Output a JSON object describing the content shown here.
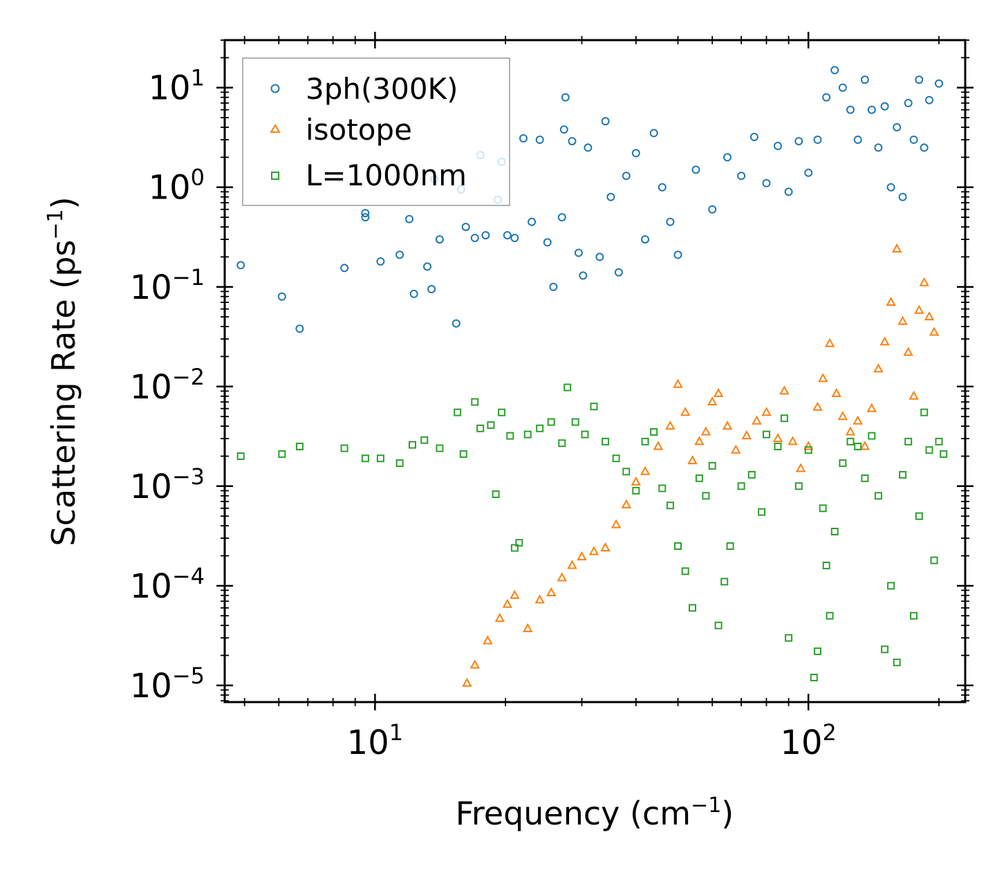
{
  "chart_data": {
    "type": "scatter",
    "xscale": "log",
    "yscale": "log",
    "xlim": [
      4.5,
      230
    ],
    "ylim": [
      6.8e-06,
      30
    ],
    "xlabel": "Frequency (cm",
    "xlabel_sup": "−1",
    "xlabel_end": ")",
    "ylabel": "Scattering Rate (ps",
    "ylabel_sup": "−1",
    "ylabel_end": ")",
    "x_ticks": [
      {
        "value": 10,
        "base": "10",
        "exp": "1"
      },
      {
        "value": 100,
        "base": "10",
        "exp": "2"
      }
    ],
    "y_ticks": [
      {
        "value": 10,
        "base": "10",
        "exp": "1"
      },
      {
        "value": 1,
        "base": "10",
        "exp": "0"
      },
      {
        "value": 0.1,
        "base": "10",
        "exp": "−1"
      },
      {
        "value": 0.01,
        "base": "10",
        "exp": "−2"
      },
      {
        "value": 0.001,
        "base": "10",
        "exp": "−3"
      },
      {
        "value": 0.0001,
        "base": "10",
        "exp": "−4"
      },
      {
        "value": 1e-05,
        "base": "10",
        "exp": "−5"
      }
    ],
    "legend_position": "top-left",
    "series": [
      {
        "name": "3ph(300K)",
        "marker": "circle",
        "color": "#1f77b4",
        "points": [
          [
            4.9,
            0.165
          ],
          [
            6.1,
            0.08
          ],
          [
            6.7,
            0.038
          ],
          [
            8.5,
            0.155
          ],
          [
            9.5,
            0.55
          ],
          [
            9.5,
            0.5
          ],
          [
            10.3,
            0.18
          ],
          [
            11.4,
            0.21
          ],
          [
            12.0,
            0.48
          ],
          [
            12.3,
            0.085
          ],
          [
            13.2,
            0.16
          ],
          [
            13.5,
            0.095
          ],
          [
            13.7,
            1.2
          ],
          [
            14.1,
            0.3
          ],
          [
            15.4,
            0.043
          ],
          [
            15.8,
            0.95
          ],
          [
            16.2,
            0.4
          ],
          [
            17.0,
            0.31
          ],
          [
            17.5,
            2.1
          ],
          [
            18.0,
            0.33
          ],
          [
            19.2,
            0.75
          ],
          [
            19.6,
            1.8
          ],
          [
            20.2,
            0.33
          ],
          [
            21.0,
            0.31
          ],
          [
            22.0,
            3.1
          ],
          [
            23.0,
            0.45
          ],
          [
            24.0,
            3.0
          ],
          [
            25.0,
            0.28
          ],
          [
            25.8,
            0.1
          ],
          [
            27.0,
            0.5
          ],
          [
            27.5,
            8.0
          ],
          [
            27.3,
            3.8
          ],
          [
            28.5,
            2.9
          ],
          [
            29.5,
            0.22
          ],
          [
            30.2,
            0.13
          ],
          [
            31.0,
            2.5
          ],
          [
            33.0,
            0.2
          ],
          [
            34.0,
            4.6
          ],
          [
            35.0,
            0.8
          ],
          [
            36.5,
            0.14
          ],
          [
            38.0,
            1.3
          ],
          [
            40.0,
            2.2
          ],
          [
            42.0,
            0.3
          ],
          [
            44.0,
            3.5
          ],
          [
            46.0,
            1.0
          ],
          [
            48.0,
            0.45
          ],
          [
            50.0,
            0.21
          ],
          [
            55.0,
            1.5
          ],
          [
            60.0,
            0.6
          ],
          [
            65.0,
            2.0
          ],
          [
            70.0,
            1.3
          ],
          [
            75.0,
            3.2
          ],
          [
            80.0,
            1.1
          ],
          [
            85.0,
            2.6
          ],
          [
            90.0,
            0.9
          ],
          [
            95.0,
            2.9
          ],
          [
            100.0,
            1.4
          ],
          [
            105.0,
            3.0
          ],
          [
            110.0,
            8.0
          ],
          [
            115.0,
            15.0
          ],
          [
            120.0,
            10.0
          ],
          [
            125.0,
            6.0
          ],
          [
            130.0,
            3.0
          ],
          [
            135.0,
            12.0
          ],
          [
            140.0,
            6.0
          ],
          [
            145.0,
            2.5
          ],
          [
            150.0,
            6.5
          ],
          [
            155.0,
            1.0
          ],
          [
            160.0,
            4.0
          ],
          [
            165.0,
            0.8
          ],
          [
            170.0,
            7.0
          ],
          [
            175.0,
            3.0
          ],
          [
            180.0,
            12.0
          ],
          [
            185.0,
            2.5
          ],
          [
            190.0,
            7.5
          ],
          [
            200.0,
            11.0
          ]
        ]
      },
      {
        "name": "isotope",
        "marker": "triangle",
        "color": "#ff7f0e",
        "points": [
          [
            16.3,
            1.05e-05
          ],
          [
            17.0,
            1.6e-05
          ],
          [
            18.2,
            2.8e-05
          ],
          [
            19.4,
            4.7e-05
          ],
          [
            20.2,
            6.5e-05
          ],
          [
            21.0,
            8e-05
          ],
          [
            22.5,
            3.7e-05
          ],
          [
            24.0,
            7.2e-05
          ],
          [
            25.5,
            8.5e-05
          ],
          [
            27.0,
            0.00012
          ],
          [
            28.5,
            0.00016
          ],
          [
            30.0,
            0.000195
          ],
          [
            32.0,
            0.00022
          ],
          [
            34.0,
            0.00024
          ],
          [
            36.0,
            0.00041
          ],
          [
            38.0,
            0.00065
          ],
          [
            40.0,
            0.0011
          ],
          [
            42.0,
            0.0014
          ],
          [
            45.0,
            0.0025
          ],
          [
            48.0,
            0.004
          ],
          [
            50.0,
            0.0105
          ],
          [
            52.0,
            0.0055
          ],
          [
            54.0,
            0.0018
          ],
          [
            56.0,
            0.0028
          ],
          [
            58.0,
            0.0035
          ],
          [
            60.0,
            0.007
          ],
          [
            62.0,
            0.0085
          ],
          [
            65.0,
            0.004
          ],
          [
            68.0,
            0.0023
          ],
          [
            72.0,
            0.0032
          ],
          [
            76.0,
            0.0045
          ],
          [
            80.0,
            0.0055
          ],
          [
            85.0,
            0.003
          ],
          [
            88.0,
            0.009
          ],
          [
            92.0,
            0.0028
          ],
          [
            96.0,
            0.0015
          ],
          [
            100.0,
            0.0025
          ],
          [
            105.0,
            0.0062
          ],
          [
            108.0,
            0.012
          ],
          [
            112.0,
            0.027
          ],
          [
            116.0,
            0.0085
          ],
          [
            120.0,
            0.005
          ],
          [
            125.0,
            0.0035
          ],
          [
            130.0,
            0.0045
          ],
          [
            135.0,
            0.0025
          ],
          [
            140.0,
            0.006
          ],
          [
            145.0,
            0.015
          ],
          [
            150.0,
            0.028
          ],
          [
            155.0,
            0.07
          ],
          [
            160.0,
            0.24
          ],
          [
            165.0,
            0.045
          ],
          [
            170.0,
            0.022
          ],
          [
            175.0,
            0.008
          ],
          [
            180.0,
            0.058
          ],
          [
            185.0,
            0.11
          ],
          [
            190.0,
            0.05
          ],
          [
            195.0,
            0.035
          ]
        ]
      },
      {
        "name": "L=1000nm",
        "marker": "square",
        "color": "#2ca02c",
        "points": [
          [
            4.9,
            0.002
          ],
          [
            6.1,
            0.0021
          ],
          [
            6.7,
            0.0025
          ],
          [
            8.5,
            0.0024
          ],
          [
            9.5,
            0.0019
          ],
          [
            10.3,
            0.0019
          ],
          [
            11.4,
            0.0017
          ],
          [
            12.2,
            0.0026
          ],
          [
            13.0,
            0.0029
          ],
          [
            14.1,
            0.0024
          ],
          [
            15.5,
            0.0055
          ],
          [
            16.0,
            0.0021
          ],
          [
            17.0,
            0.007
          ],
          [
            17.5,
            0.0038
          ],
          [
            18.5,
            0.0041
          ],
          [
            19.0,
            0.00083
          ],
          [
            19.6,
            0.0055
          ],
          [
            20.5,
            0.0032
          ],
          [
            21.0,
            0.00024
          ],
          [
            21.5,
            0.00027
          ],
          [
            22.5,
            0.0033
          ],
          [
            24.0,
            0.0038
          ],
          [
            25.5,
            0.0044
          ],
          [
            27.0,
            0.0027
          ],
          [
            27.8,
            0.0098
          ],
          [
            29.0,
            0.0044
          ],
          [
            30.5,
            0.0033
          ],
          [
            32.0,
            0.0063
          ],
          [
            34.0,
            0.0028
          ],
          [
            36.0,
            0.0019
          ],
          [
            38.0,
            0.0014
          ],
          [
            40.0,
            0.0009
          ],
          [
            42.0,
            0.0028
          ],
          [
            44.0,
            0.0035
          ],
          [
            46.0,
            0.00095
          ],
          [
            48.0,
            0.00064
          ],
          [
            50.0,
            0.00025
          ],
          [
            52.0,
            0.00014
          ],
          [
            54.0,
            6e-05
          ],
          [
            56.0,
            0.0012
          ],
          [
            58.0,
            0.0008
          ],
          [
            60.0,
            0.0016
          ],
          [
            62.0,
            4e-05
          ],
          [
            64.0,
            0.00011
          ],
          [
            66.0,
            0.00025
          ],
          [
            70.0,
            0.001
          ],
          [
            74.0,
            0.0013
          ],
          [
            78.0,
            0.00055
          ],
          [
            80.0,
            0.0033
          ],
          [
            85.0,
            0.0025
          ],
          [
            88.0,
            0.0048
          ],
          [
            90.0,
            3e-05
          ],
          [
            95.0,
            0.001
          ],
          [
            100.0,
            0.0023
          ],
          [
            103.0,
            1.2e-05
          ],
          [
            105.0,
            2.2e-05
          ],
          [
            108.0,
            0.0006
          ],
          [
            110.0,
            0.00016
          ],
          [
            112.0,
            5e-05
          ],
          [
            115.0,
            0.00035
          ],
          [
            120.0,
            0.0017
          ],
          [
            125.0,
            0.0028
          ],
          [
            130.0,
            0.0025
          ],
          [
            135.0,
            0.0012
          ],
          [
            140.0,
            0.0032
          ],
          [
            145.0,
            0.0008
          ],
          [
            150.0,
            2.3e-05
          ],
          [
            155.0,
            0.0001
          ],
          [
            160.0,
            1.7e-05
          ],
          [
            165.0,
            0.0013
          ],
          [
            170.0,
            0.0028
          ],
          [
            175.0,
            5e-05
          ],
          [
            180.0,
            0.0005
          ],
          [
            185.0,
            0.0055
          ],
          [
            190.0,
            0.0023
          ],
          [
            195.0,
            0.00018
          ],
          [
            200.0,
            0.0028
          ],
          [
            205.0,
            0.0021
          ]
        ]
      }
    ]
  }
}
